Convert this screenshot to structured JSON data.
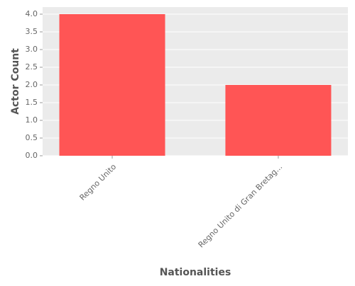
{
  "chart_data": {
    "type": "bar",
    "x_label": "Nationalities",
    "y_label": "Actor Count",
    "categories": [
      "Regno Unito",
      "Regno Unito di Gran Bretag..."
    ],
    "values": [
      4,
      2
    ],
    "color": "#ff5555",
    "ylim": [
      0,
      4.2
    ],
    "yticks": [
      {
        "value": 0,
        "label": "0.0"
      },
      0.5,
      {
        "value": 1,
        "label": "1.0"
      },
      1.5,
      {
        "value": 2,
        "label": "2.0"
      },
      2.5,
      {
        "value": 3,
        "label": "3.0"
      },
      3.5,
      {
        "value": 4,
        "label": "4.0"
      }
    ],
    "grid": true
  }
}
